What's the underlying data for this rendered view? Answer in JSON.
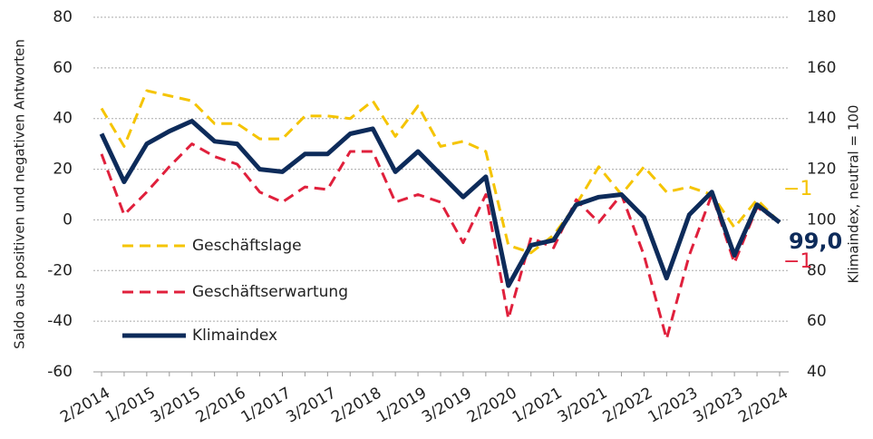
{
  "chart_data": {
    "type": "line",
    "categories": [
      "2/2014",
      null,
      "1/2015",
      null,
      "3/2015",
      null,
      "2/2016",
      null,
      "1/2017",
      null,
      "3/2017",
      null,
      "2/2018",
      null,
      "1/2019",
      null,
      "3/2019",
      null,
      "2/2020",
      null,
      "1/2021",
      null,
      "3/2021",
      null,
      "2/2022",
      null,
      "1/2023",
      null,
      "3/2023",
      null,
      "2/2024"
    ],
    "ylabel": "Saldo aus positiven und negativen Antworten",
    "y2label": "Klimaindex, neutral = 100",
    "ylim": [
      -60,
      80
    ],
    "yticks": [
      -60,
      -40,
      -20,
      0,
      20,
      40,
      60,
      80
    ],
    "y2lim": [
      40,
      180
    ],
    "y2ticks": [
      40,
      60,
      80,
      100,
      120,
      140,
      160,
      180
    ],
    "grid": true,
    "legend": "left",
    "series": [
      {
        "name": "Geschäftslage",
        "color": "#f5c400",
        "dash": true,
        "values": [
          44,
          29,
          51,
          49,
          47,
          38,
          38,
          32,
          32,
          41,
          41,
          40,
          47,
          33,
          45,
          29,
          31,
          27,
          -10,
          -13,
          -6,
          6,
          21,
          10,
          21,
          11,
          13,
          10,
          -3,
          8,
          -1
        ],
        "value_labels": [
          null,
          null,
          null,
          null,
          null,
          null,
          null,
          null,
          null,
          null,
          null,
          null,
          null,
          null,
          null,
          null,
          null,
          null,
          null,
          null,
          null,
          null,
          null,
          null,
          null,
          null,
          null,
          null,
          null,
          null,
          "−1"
        ]
      },
      {
        "name": "Geschäftserwartung",
        "color": "#e0203c",
        "dash": true,
        "values": [
          26,
          2,
          11,
          21,
          30,
          25,
          22,
          11,
          7,
          13,
          12,
          27,
          27,
          7,
          10,
          7,
          -9,
          10,
          -39,
          -7,
          -11,
          8,
          -1,
          10,
          -14,
          -47,
          -14,
          10,
          -17,
          5,
          -1
        ],
        "value_labels": [
          null,
          null,
          null,
          null,
          null,
          null,
          null,
          null,
          null,
          null,
          null,
          null,
          null,
          null,
          null,
          null,
          null,
          null,
          null,
          null,
          null,
          null,
          null,
          null,
          null,
          null,
          null,
          null,
          null,
          null,
          "−1"
        ]
      },
      {
        "name": "Klimaindex",
        "color": "#0d2b5a",
        "axis": "y2",
        "values": [
          134,
          115,
          130,
          135,
          139,
          131,
          130,
          120,
          119,
          126,
          126,
          134,
          136,
          119,
          127,
          118,
          109,
          117,
          74,
          90,
          92,
          106,
          109,
          110,
          101,
          77,
          102,
          111,
          86,
          106,
          99
        ],
        "value_labels": [
          null,
          null,
          null,
          null,
          null,
          null,
          null,
          null,
          null,
          null,
          null,
          null,
          null,
          null,
          null,
          null,
          null,
          null,
          null,
          null,
          null,
          null,
          null,
          null,
          null,
          null,
          null,
          null,
          null,
          null,
          "99,0"
        ]
      }
    ]
  }
}
